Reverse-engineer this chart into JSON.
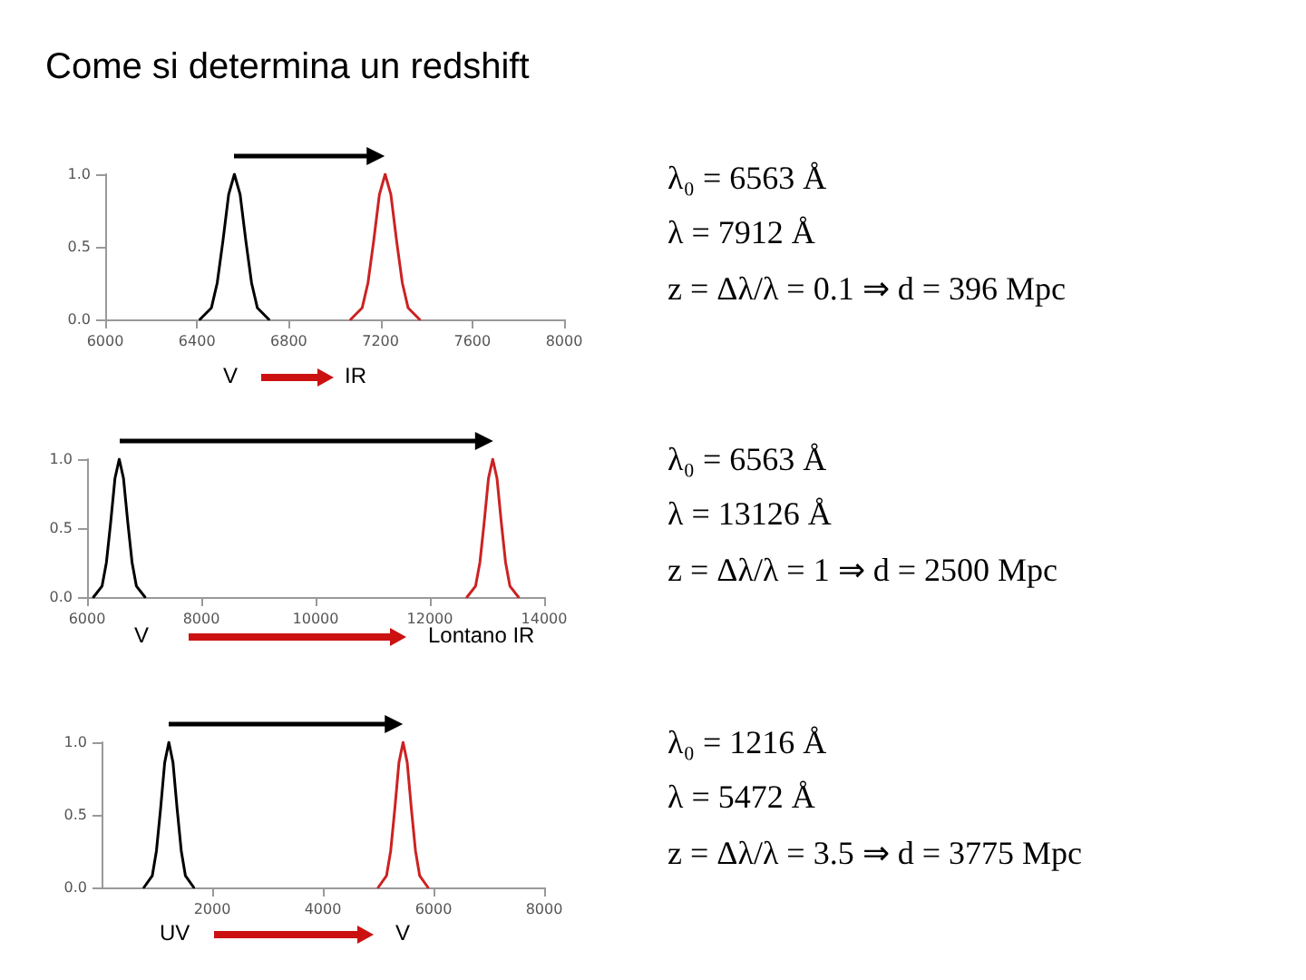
{
  "chart_data": [
    {
      "type": "line",
      "title": "Come si determina un redshift",
      "marker": "none",
      "xlim": [
        6000,
        8000
      ],
      "xticks": [
        6000,
        6400,
        6800,
        7200,
        7600,
        8000
      ],
      "ylim": [
        0,
        1
      ],
      "yticks": [
        {
          "value": 0,
          "label": "0.0"
        },
        {
          "value": 0.5,
          "label": "0.5"
        },
        {
          "value": 1,
          "label": "1.0"
        }
      ],
      "series": [
        {
          "color": "#000000",
          "x": [
            6413,
            6463,
            6488,
            6513,
            6538,
            6563,
            6588,
            6613,
            6638,
            6663,
            6713
          ],
          "values": [
            0,
            0.08,
            0.25,
            0.54,
            0.86,
            1,
            0.86,
            0.54,
            0.25,
            0.08,
            0
          ]
        },
        {
          "color": "#cc2222",
          "x": [
            7070,
            7120,
            7145,
            7170,
            7195,
            7220,
            7245,
            7270,
            7295,
            7320,
            7370
          ],
          "values": [
            0,
            0.08,
            0.25,
            0.54,
            0.86,
            1,
            0.86,
            0.54,
            0.25,
            0.08,
            0
          ]
        }
      ],
      "annotations": [
        "V",
        "IR",
        "λ₀ = 6563 Å",
        "λ = 7912 Å",
        "z = Δλ/λ = 0.1 ⇒ d = 396 Mpc"
      ]
    },
    {
      "type": "line",
      "marker": "none",
      "xlim": [
        6000,
        14000
      ],
      "xticks": [
        6000,
        8000,
        10000,
        12000,
        14000
      ],
      "ylim": [
        0,
        1
      ],
      "yticks": [
        {
          "value": 0,
          "label": "0.0"
        },
        {
          "value": 0.5,
          "label": "0.5"
        },
        {
          "value": 1,
          "label": "1.0"
        }
      ],
      "series": [
        {
          "color": "#000000",
          "x": [
            6113,
            6263,
            6338,
            6413,
            6488,
            6563,
            6638,
            6713,
            6788,
            6863,
            7013
          ],
          "values": [
            0,
            0.08,
            0.25,
            0.54,
            0.86,
            1,
            0.86,
            0.54,
            0.25,
            0.08,
            0
          ]
        },
        {
          "color": "#cc2222",
          "x": [
            12650,
            12800,
            12875,
            12950,
            13025,
            13100,
            13175,
            13250,
            13325,
            13400,
            13550
          ],
          "values": [
            0,
            0.08,
            0.25,
            0.54,
            0.86,
            1,
            0.86,
            0.54,
            0.25,
            0.08,
            0
          ]
        }
      ],
      "annotations": [
        "V",
        "Lontano IR",
        "λ₀ = 6563 Å",
        "λ = 13126 Å",
        "z = Δλ/λ = 1 ⇒ d = 2500 Mpc"
      ]
    },
    {
      "type": "line",
      "marker": "none",
      "xlim": [
        0,
        8000
      ],
      "xticks": [
        2000,
        4000,
        6000,
        8000
      ],
      "ylim": [
        0,
        1
      ],
      "yticks": [
        {
          "value": 0,
          "label": "0.0"
        },
        {
          "value": 0.5,
          "label": "0.5"
        },
        {
          "value": 1,
          "label": "1.0"
        }
      ],
      "series": [
        {
          "color": "#000000",
          "x": [
            766,
            916,
            991,
            1066,
            1141,
            1216,
            1291,
            1366,
            1441,
            1516,
            1666
          ],
          "values": [
            0,
            0.08,
            0.25,
            0.54,
            0.86,
            1,
            0.86,
            0.54,
            0.25,
            0.08,
            0
          ]
        },
        {
          "color": "#cc2222",
          "x": [
            5000,
            5150,
            5225,
            5300,
            5375,
            5450,
            5525,
            5600,
            5675,
            5750,
            5900
          ],
          "values": [
            0,
            0.08,
            0.25,
            0.54,
            0.86,
            1,
            0.86,
            0.54,
            0.25,
            0.08,
            0
          ]
        }
      ],
      "annotations": [
        "UV",
        "V",
        "λ₀ = 1216 Å",
        "λ = 5472 Å",
        "z = Δλ/λ = 3.5 ⇒ d = 3775 Mpc"
      ]
    }
  ]
}
